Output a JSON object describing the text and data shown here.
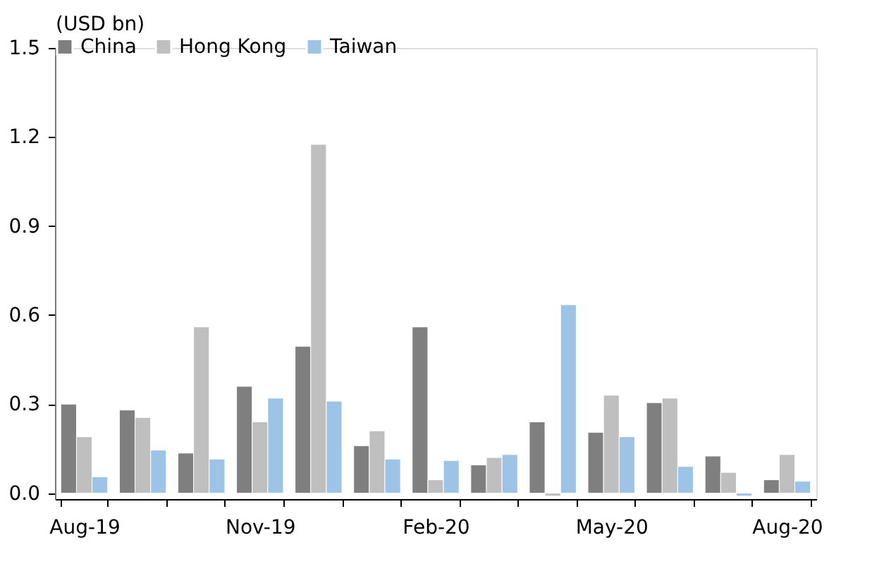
{
  "chart_data": {
    "type": "bar",
    "ylabel": "(USD bn)",
    "categories": [
      "Aug-19",
      null,
      null,
      "Nov-19",
      null,
      null,
      "Feb-20",
      null,
      null,
      "May-20",
      null,
      null,
      "Aug-20"
    ],
    "series": [
      {
        "name": "China",
        "color": "#7f7f7f",
        "values": [
          0.3,
          0.28,
          0.135,
          0.36,
          0.495,
          0.16,
          0.56,
          0.095,
          0.24,
          0.205,
          0.305,
          0.125,
          0.045
        ]
      },
      {
        "name": "Hong Kong",
        "color": "#bfbfbf",
        "values": [
          0.19,
          0.255,
          0.56,
          0.24,
          1.175,
          0.21,
          0.045,
          0.12,
          -0.01,
          0.33,
          0.32,
          0.07,
          0.13
        ]
      },
      {
        "name": "Taiwan",
        "color": "#9dc3e6",
        "values": [
          0.055,
          0.145,
          0.115,
          0.32,
          0.31,
          0.115,
          0.11,
          0.13,
          0.635,
          0.19,
          0.09,
          -0.01,
          0.04
        ]
      }
    ],
    "ylim": [
      -0.02,
      1.5
    ],
    "yticks": [
      {
        "value": 0,
        "label": "0.0"
      },
      0.3,
      0.6,
      0.9,
      1.2,
      1.5
    ],
    "grid": false,
    "legend": "top"
  }
}
